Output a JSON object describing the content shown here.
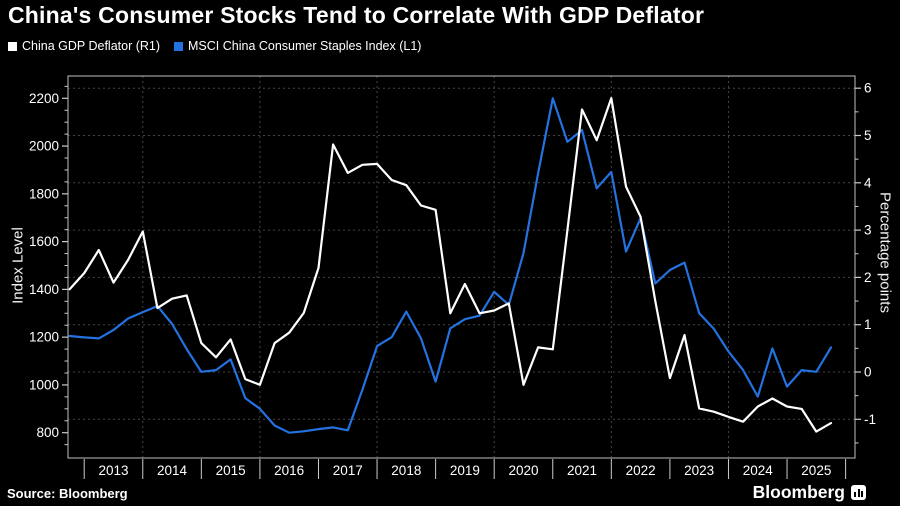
{
  "title": "China's Consumer Stocks Tend to Correlate With GDP Deflator",
  "legend": [
    {
      "label": "China GDP Deflator (R1)",
      "color": "#ffffff"
    },
    {
      "label": "MSCI China Consumer Staples Index (L1)",
      "color": "#2472e0"
    }
  ],
  "left_axis": {
    "label": "Index Level",
    "tick_values": [
      2200,
      2000,
      1800,
      1600,
      1400,
      1200,
      1000,
      800
    ]
  },
  "right_axis": {
    "label": "Percentage points",
    "tick_values": [
      6,
      5,
      4,
      3,
      2,
      1,
      0,
      -1
    ]
  },
  "x_axis": {
    "years": [
      "2013",
      "2014",
      "2015",
      "2016",
      "2017",
      "2018",
      "2019",
      "2020",
      "2021",
      "2022",
      "2023",
      "2024",
      "2025"
    ],
    "grid_years": [
      2014,
      2016,
      2018,
      2020,
      2022,
      2024
    ]
  },
  "source": "Source: Bloomberg",
  "brand": {
    "wordmark": "Bloomberg",
    "logo_icon": "bar-chart-icon"
  },
  "colors": {
    "background": "#000000",
    "grid": "#454545",
    "frame": "#bfbfbf",
    "tick": "#cccccc",
    "text": "#ffffff",
    "gdp_deflator": "#ffffff",
    "msci_index": "#2472e0"
  },
  "chart_data": {
    "type": "line",
    "x_start": 2012.75,
    "x_step": 0.25,
    "x_unit": "quarterly",
    "left_ylim": [
      800,
      2200
    ],
    "right_ylim": [
      -1,
      6
    ],
    "grid": "horizontal dashed at right-axis integers; vertical dashed at biennial year starts",
    "legend_position": "top-left",
    "series": [
      {
        "id": "msci-consumer-staples-line",
        "name": "MSCI China Consumer Staples Index (L1)",
        "axis": "left",
        "color": "#2472e0",
        "values": [
          1205,
          1199,
          1195,
          1230,
          1278,
          1305,
          1330,
          1255,
          1150,
          1055,
          1062,
          1107,
          945,
          900,
          830,
          800,
          806,
          815,
          822,
          810,
          980,
          1163,
          1200,
          1307,
          1195,
          1014,
          1237,
          1275,
          1290,
          1390,
          1335,
          1552,
          1886,
          2200,
          2018,
          2067,
          1823,
          1892,
          1558,
          1698,
          1425,
          1481,
          1512,
          1300,
          1235,
          1140,
          1062,
          951,
          1153,
          993,
          1062,
          1055,
          1157
        ]
      },
      {
        "id": "gdp-deflator-line",
        "name": "China GDP Deflator (R1)",
        "axis": "right",
        "color": "#ffffff",
        "values": [
          1.75,
          2.09,
          2.58,
          1.89,
          2.37,
          2.97,
          1.35,
          1.55,
          1.62,
          0.61,
          0.31,
          0.69,
          -0.15,
          -0.27,
          0.61,
          0.83,
          1.25,
          2.2,
          4.81,
          4.21,
          4.38,
          4.4,
          4.06,
          3.95,
          3.52,
          3.43,
          1.24,
          1.86,
          1.24,
          1.3,
          1.45,
          -0.27,
          0.52,
          0.48,
          3.0,
          5.55,
          4.9,
          5.79,
          3.92,
          3.28,
          1.5,
          -0.13,
          0.78,
          -0.77,
          -0.84,
          -0.95,
          -1.05,
          -0.73,
          -0.56,
          -0.73,
          -0.78,
          -1.26,
          -1.08
        ]
      }
    ]
  }
}
